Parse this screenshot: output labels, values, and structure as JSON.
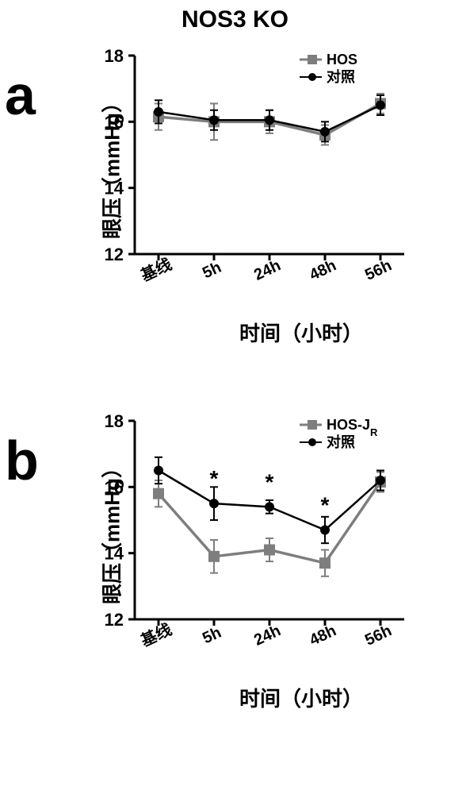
{
  "title": "NOS3 KO",
  "panels": {
    "a": {
      "label": "a",
      "ylabel": "眼压（mmHg）",
      "xlabel": "时间（小时）",
      "ylim": [
        12,
        18
      ],
      "yticks": [
        12,
        14,
        16,
        18
      ],
      "xticks": [
        "基线",
        "5h",
        "24h",
        "48h",
        "56h"
      ],
      "legend": {
        "series1": {
          "name": "HOS",
          "color": "#7e7e7e",
          "marker": "square"
        },
        "series2": {
          "name": "对照",
          "color": "#010101",
          "marker": "circle"
        }
      },
      "series1": {
        "y": [
          16.15,
          16.0,
          16.0,
          15.6,
          16.55
        ],
        "err": [
          0.4,
          0.55,
          0.35,
          0.3,
          0.3
        ],
        "color": "#7e7e7e",
        "lw": 3.5,
        "marker": "square",
        "ms": 7
      },
      "series2": {
        "y": [
          16.3,
          16.05,
          16.05,
          15.7,
          16.5
        ],
        "err": [
          0.35,
          0.3,
          0.3,
          0.3,
          0.3
        ],
        "color": "#010101",
        "lw": 2.5,
        "marker": "circle",
        "ms": 6
      }
    },
    "b": {
      "label": "b",
      "ylabel": "眼压（mmHg）",
      "xlabel": "时间（小时）",
      "ylim": [
        12,
        18
      ],
      "yticks": [
        12,
        14,
        16,
        18
      ],
      "xticks": [
        "基线",
        "5h",
        "24h",
        "48h",
        "56h"
      ],
      "legend": {
        "series1": {
          "name": "HOS-J",
          "sub": "R",
          "color": "#7e7e7e",
          "marker": "square"
        },
        "series2": {
          "name": "对照",
          "color": "#010101",
          "marker": "circle"
        }
      },
      "series1": {
        "y": [
          15.8,
          13.9,
          14.1,
          13.7,
          16.15
        ],
        "err": [
          0.4,
          0.5,
          0.35,
          0.4,
          0.3
        ],
        "color": "#7e7e7e",
        "lw": 3.5,
        "marker": "square",
        "ms": 7
      },
      "series2": {
        "y": [
          16.5,
          15.5,
          15.4,
          14.7,
          16.2
        ],
        "err": [
          0.4,
          0.5,
          0.2,
          0.4,
          0.3
        ],
        "color": "#010101",
        "lw": 2.5,
        "marker": "circle",
        "ms": 6
      },
      "significance": {
        "marks": [
          "*",
          "*",
          "*"
        ],
        "at_x": [
          1,
          2,
          3
        ],
        "over_y": [
          15.5,
          15.4,
          14.7
        ]
      }
    }
  },
  "style": {
    "axis_color": "#010101",
    "axis_width": 3,
    "tick_len": 8,
    "errorbar_cap": 10,
    "background": "#ffffff",
    "font_family": "Arial",
    "plot_inner_w": 340,
    "plot_inner_h": 250,
    "xtick_rotation": -25
  }
}
